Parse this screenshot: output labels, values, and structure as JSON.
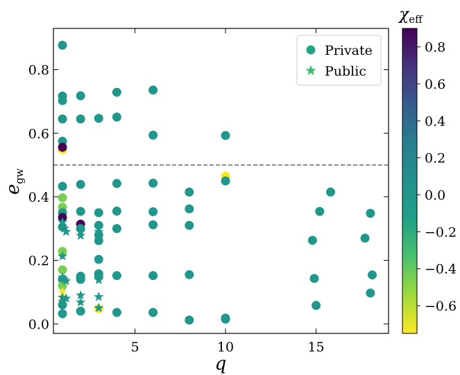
{
  "chart_data": {
    "type": "scatter",
    "xlabel": "q",
    "ylabel": "e_gw",
    "xlim": [
      0.5,
      19.0
    ],
    "ylim": [
      -0.03,
      0.93
    ],
    "xticks": [
      5,
      10,
      15
    ],
    "yticks": [
      0.0,
      0.2,
      0.4,
      0.6,
      0.8
    ],
    "xtick_labels": [
      "5",
      "10",
      "15"
    ],
    "ytick_labels": [
      "0.0",
      "0.2",
      "0.4",
      "0.6",
      "0.8"
    ],
    "reference_line": {
      "y": 0.5,
      "style": "dashed"
    },
    "colorbar": {
      "label": "χ_eff",
      "range": [
        -0.75,
        0.9
      ],
      "ticks": [
        0.8,
        0.6,
        0.4,
        0.2,
        0.0,
        -0.2,
        -0.4,
        -0.6
      ],
      "tick_labels": [
        "0.8",
        "0.6",
        "0.4",
        "0.2",
        "0.0",
        "−0.2",
        "−0.4",
        "−0.6"
      ],
      "colormap": "viridis"
    },
    "legend": {
      "placement": "top-right",
      "entries": [
        {
          "label": "Private",
          "marker": "circle",
          "color": "#21a685"
        },
        {
          "label": "Public",
          "marker": "star",
          "color": "#3dbc74"
        }
      ]
    },
    "series": [
      {
        "name": "Private",
        "marker": "circle",
        "points": [
          {
            "x": 1,
            "y": 0.877,
            "c": 0.0
          },
          {
            "x": 1,
            "y": 0.717,
            "c": 0.0
          },
          {
            "x": 1,
            "y": 0.703,
            "c": 0.0
          },
          {
            "x": 1,
            "y": 0.645,
            "c": 0.0
          },
          {
            "x": 1,
            "y": 0.575,
            "c": 0.0
          },
          {
            "x": 1,
            "y": 0.548,
            "c": -0.75
          },
          {
            "x": 1,
            "y": 0.556,
            "c": 0.9
          },
          {
            "x": 1,
            "y": 0.433,
            "c": 0.0
          },
          {
            "x": 1,
            "y": 0.397,
            "c": -0.45
          },
          {
            "x": 1,
            "y": 0.367,
            "c": -0.45
          },
          {
            "x": 1,
            "y": 0.35,
            "c": 0.0
          },
          {
            "x": 1,
            "y": 0.335,
            "c": 0.9
          },
          {
            "x": 1,
            "y": 0.305,
            "c": 0.0
          },
          {
            "x": 1,
            "y": 0.228,
            "c": -0.45
          },
          {
            "x": 1,
            "y": 0.17,
            "c": -0.45
          },
          {
            "x": 1,
            "y": 0.14,
            "c": 0.0
          },
          {
            "x": 1,
            "y": 0.12,
            "c": -0.45
          },
          {
            "x": 1,
            "y": 0.06,
            "c": 0.0
          },
          {
            "x": 1,
            "y": 0.032,
            "c": 0.0
          },
          {
            "x": 2,
            "y": 0.718,
            "c": 0.0
          },
          {
            "x": 2,
            "y": 0.645,
            "c": 0.0
          },
          {
            "x": 2,
            "y": 0.439,
            "c": 0.0
          },
          {
            "x": 2,
            "y": 0.354,
            "c": 0.0
          },
          {
            "x": 2,
            "y": 0.314,
            "c": 0.9
          },
          {
            "x": 2,
            "y": 0.3,
            "c": 0.0
          },
          {
            "x": 2,
            "y": 0.15,
            "c": 0.0
          },
          {
            "x": 2,
            "y": 0.14,
            "c": 0.0
          },
          {
            "x": 2,
            "y": 0.04,
            "c": 0.0
          },
          {
            "x": 3,
            "y": 0.647,
            "c": 0.0
          },
          {
            "x": 3,
            "y": 0.35,
            "c": 0.0
          },
          {
            "x": 3,
            "y": 0.31,
            "c": 0.0
          },
          {
            "x": 3,
            "y": 0.28,
            "c": 0.0
          },
          {
            "x": 3,
            "y": 0.262,
            "c": 0.0
          },
          {
            "x": 3,
            "y": 0.203,
            "c": 0.0
          },
          {
            "x": 3,
            "y": 0.158,
            "c": 0.0
          },
          {
            "x": 3,
            "y": 0.15,
            "c": 0.0
          },
          {
            "x": 3,
            "y": 0.048,
            "c": -0.75
          },
          {
            "x": 4,
            "y": 0.729,
            "c": 0.0
          },
          {
            "x": 4,
            "y": 0.651,
            "c": 0.0
          },
          {
            "x": 4,
            "y": 0.442,
            "c": 0.0
          },
          {
            "x": 4,
            "y": 0.355,
            "c": 0.0
          },
          {
            "x": 4,
            "y": 0.3,
            "c": 0.0
          },
          {
            "x": 4,
            "y": 0.152,
            "c": 0.0
          },
          {
            "x": 4,
            "y": 0.036,
            "c": 0.0
          },
          {
            "x": 6,
            "y": 0.736,
            "c": 0.0
          },
          {
            "x": 6,
            "y": 0.594,
            "c": 0.0
          },
          {
            "x": 6,
            "y": 0.443,
            "c": 0.0
          },
          {
            "x": 6,
            "y": 0.353,
            "c": 0.0
          },
          {
            "x": 6,
            "y": 0.312,
            "c": 0.0
          },
          {
            "x": 6,
            "y": 0.152,
            "c": 0.0
          },
          {
            "x": 6,
            "y": 0.036,
            "c": 0.0
          },
          {
            "x": 8,
            "y": 0.415,
            "c": 0.0
          },
          {
            "x": 8,
            "y": 0.362,
            "c": 0.0
          },
          {
            "x": 8,
            "y": 0.31,
            "c": 0.0
          },
          {
            "x": 8,
            "y": 0.155,
            "c": 0.0
          },
          {
            "x": 8,
            "y": 0.012,
            "c": 0.0
          },
          {
            "x": 10,
            "y": 0.593,
            "c": 0.0
          },
          {
            "x": 10,
            "y": 0.465,
            "c": -0.75
          },
          {
            "x": 10,
            "y": 0.45,
            "c": 0.0
          },
          {
            "x": 10,
            "y": 0.018,
            "c": 0.0
          },
          {
            "x": 10,
            "y": 0.015,
            "c": 0.0
          },
          {
            "x": 14.8,
            "y": 0.263,
            "c": 0.0
          },
          {
            "x": 14.9,
            "y": 0.143,
            "c": 0.0
          },
          {
            "x": 15.0,
            "y": 0.058,
            "c": 0.0
          },
          {
            "x": 15.2,
            "y": 0.354,
            "c": 0.0
          },
          {
            "x": 15.8,
            "y": 0.415,
            "c": 0.0
          },
          {
            "x": 17.7,
            "y": 0.27,
            "c": 0.0
          },
          {
            "x": 18.0,
            "y": 0.348,
            "c": 0.0
          },
          {
            "x": 18.1,
            "y": 0.154,
            "c": 0.0
          },
          {
            "x": 18.0,
            "y": 0.097,
            "c": 0.0
          }
        ]
      },
      {
        "name": "Public",
        "marker": "star",
        "points": [
          {
            "x": 1,
            "y": 0.32,
            "c": 0.0
          },
          {
            "x": 1,
            "y": 0.213,
            "c": 0.0
          },
          {
            "x": 1,
            "y": 0.147,
            "c": 0.0
          },
          {
            "x": 1,
            "y": 0.1,
            "c": -0.75
          },
          {
            "x": 1,
            "y": 0.083,
            "c": 0.0
          },
          {
            "x": 1,
            "y": 0.07,
            "c": 0.0
          },
          {
            "x": 1.1,
            "y": 0.3,
            "c": 0.0
          },
          {
            "x": 1.1,
            "y": 0.14,
            "c": 0.0
          },
          {
            "x": 1.2,
            "y": 0.29,
            "c": 0.0
          },
          {
            "x": 1.2,
            "y": 0.135,
            "c": 0.0
          },
          {
            "x": 1.2,
            "y": 0.08,
            "c": 0.0
          },
          {
            "x": 2,
            "y": 0.29,
            "c": 0.0
          },
          {
            "x": 2,
            "y": 0.278,
            "c": 0.0
          },
          {
            "x": 2,
            "y": 0.14,
            "c": 0.0
          },
          {
            "x": 2,
            "y": 0.09,
            "c": 0.0
          },
          {
            "x": 2,
            "y": 0.068,
            "c": 0.0
          },
          {
            "x": 3,
            "y": 0.29,
            "c": 0.0
          },
          {
            "x": 3,
            "y": 0.138,
            "c": 0.0
          },
          {
            "x": 3,
            "y": 0.085,
            "c": 0.0
          },
          {
            "x": 3,
            "y": 0.05,
            "c": 0.0
          }
        ]
      }
    ]
  }
}
